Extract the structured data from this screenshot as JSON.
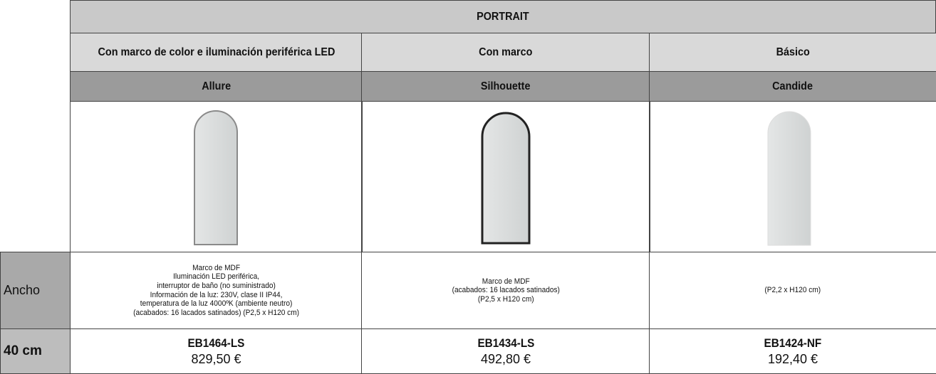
{
  "header": {
    "title": "PORTRAIT"
  },
  "row_labels": {
    "width": "Ancho",
    "size": "40 cm"
  },
  "columns": [
    {
      "category": "Con marco de color e iluminación periférica LED",
      "name": "Allure",
      "description": [
        "Marco de MDF",
        "Iluminación LED periférica,",
        "interruptor de baño (no suministrado)",
        "Información de la luz: 230V, clase II IP44,",
        "temperatura de la luz 4000ºK (ambiente neutro)",
        "(acabados: 16 lacados satinados) (P2,5 x H120 cm)"
      ],
      "code": "EB1464-LS",
      "price": "829,50 €"
    },
    {
      "category": "Con marco",
      "name": "Silhouette",
      "description": [
        "Marco de MDF",
        "(acabados: 16 lacados satinados)",
        "(P2,5 x H120 cm)"
      ],
      "code": "EB1434-LS",
      "price": "492,80 €"
    },
    {
      "category": "Básico",
      "name": "Candide",
      "description": [
        "(P2,2 x H120 cm)"
      ],
      "code": "EB1424-NF",
      "price": "192,40 €"
    }
  ]
}
